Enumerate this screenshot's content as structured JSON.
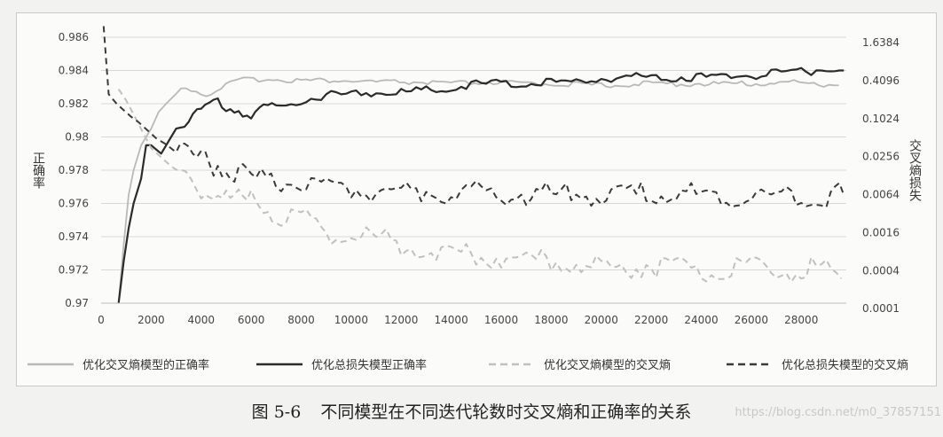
{
  "chart_data": {
    "type": "line",
    "title": "",
    "xlabel": "",
    "ylabel": "正确率",
    "y2label": "交叉熵损失",
    "xlim": [
      0,
      29800
    ],
    "ylim": [
      0.97,
      0.986
    ],
    "y2lim_log2": [
      -13,
      1
    ],
    "y2_scale": "log2",
    "grid": true,
    "legend_position": "bottom",
    "x_ticks": [
      "0",
      "2000",
      "4000",
      "6000",
      "8000",
      "10000",
      "12000",
      "14000",
      "16000",
      "18000",
      "20000",
      "22000",
      "24000",
      "26000",
      "28000"
    ],
    "y_ticks": [
      "0.986",
      "0.984",
      "0.982",
      "0.98",
      "0.978",
      "0.976",
      "0.974",
      "0.972",
      "0.97"
    ],
    "y2_ticks": [
      "1.6384",
      "0.4096",
      "0.1024",
      "0.0256",
      "0.0064",
      "0.0016",
      "0.0004",
      "0.0001"
    ],
    "series": [
      {
        "name": "优化交叉熵模型的正确率",
        "axis": "left",
        "style": "solid",
        "color": "#b9b9b9",
        "x": [
          700,
          900,
          1100,
          1300,
          1600,
          2000,
          2300,
          2600,
          3000,
          3200,
          3400,
          3800,
          4200,
          4800,
          5500,
          6500,
          8000,
          9500,
          11000,
          12500,
          14000,
          15500,
          17000,
          18500,
          20000,
          21500,
          23000,
          24500,
          26000,
          27500,
          28500,
          29500
        ],
        "y": [
          0.97,
          0.9735,
          0.9765,
          0.978,
          0.9795,
          0.9805,
          0.9815,
          0.982,
          0.9826,
          0.9829,
          0.983,
          0.9828,
          0.9825,
          0.983,
          0.9834,
          0.9835,
          0.9834,
          0.9834,
          0.9833,
          0.9833,
          0.9832,
          0.9833,
          0.9832,
          0.9832,
          0.9831,
          0.9832,
          0.9832,
          0.9832,
          0.9832,
          0.9833,
          0.9832,
          0.9831
        ]
      },
      {
        "name": "优化总损失模型正确率",
        "axis": "left",
        "style": "solid",
        "color": "#2b2b2b",
        "x": [
          700,
          900,
          1100,
          1300,
          1600,
          1800,
          2000,
          2400,
          3000,
          3500,
          4000,
          4500,
          5000,
          5500,
          6000,
          6500,
          7000,
          8000,
          9000,
          10000,
          11000,
          12000,
          13000,
          14000,
          15000,
          16000,
          17000,
          18000,
          19000,
          20000,
          21000,
          22000,
          23000,
          24000,
          25000,
          26000,
          27000,
          28000,
          29000,
          29700
        ],
        "y": [
          0.97,
          0.9725,
          0.9745,
          0.976,
          0.9775,
          0.9795,
          0.9795,
          0.979,
          0.9805,
          0.981,
          0.9817,
          0.9822,
          0.9818,
          0.9816,
          0.9812,
          0.9818,
          0.9818,
          0.9822,
          0.9825,
          0.9826,
          0.9827,
          0.9827,
          0.9828,
          0.9829,
          0.9832,
          0.9832,
          0.9832,
          0.9833,
          0.9833,
          0.9835,
          0.9836,
          0.9836,
          0.9836,
          0.9836,
          0.9837,
          0.9837,
          0.9838,
          0.9839,
          0.9841,
          0.984
        ]
      },
      {
        "name": "优化交叉熵模型的交叉熵",
        "axis": "right",
        "style": "dashed",
        "color": "#c0c0c0",
        "x": [
          700,
          1000,
          1300,
          1600,
          2000,
          2400,
          2800,
          3200,
          3600,
          4000,
          4500,
          5000,
          5500,
          6000,
          6500,
          7000,
          8000,
          9000,
          10000,
          11000,
          12000,
          13000,
          14000,
          15000,
          16000,
          17000,
          18000,
          19000,
          20000,
          21000,
          22000,
          23000,
          24000,
          25000,
          26000,
          27000,
          28000,
          29000,
          29600
        ],
        "y": [
          0.3,
          0.2,
          0.12,
          0.07,
          0.035,
          0.025,
          0.018,
          0.014,
          0.011,
          0.009,
          0.007,
          0.0055,
          0.005,
          0.0045,
          0.004,
          0.0033,
          0.0025,
          0.0018,
          0.0016,
          0.0013,
          0.0011,
          0.0009,
          0.0008,
          0.0007,
          0.0007,
          0.0006,
          0.0006,
          0.0005,
          0.0004,
          0.0005,
          0.0005,
          0.0004,
          0.0004,
          0.0004,
          0.0004,
          0.0004,
          0.0004,
          0.0004,
          0.0003
        ]
      },
      {
        "name": "优化总损失模型的交叉熵",
        "axis": "right",
        "style": "dashed",
        "color": "#3a3a3a",
        "x": [
          100,
          300,
          600,
          900,
          1200,
          1500,
          1800,
          2200,
          2600,
          3000,
          3500,
          4000,
          4500,
          5000,
          5500,
          6000,
          7000,
          8000,
          9000,
          10000,
          11000,
          12000,
          13000,
          14000,
          15000,
          16000,
          17000,
          18000,
          19000,
          20000,
          21000,
          22000,
          23000,
          24000,
          25000,
          26000,
          27000,
          28000,
          29000,
          29700
        ],
        "y": [
          3.0,
          0.25,
          0.18,
          0.14,
          0.11,
          0.09,
          0.07,
          0.05,
          0.04,
          0.03,
          0.025,
          0.022,
          0.02,
          0.017,
          0.014,
          0.012,
          0.01,
          0.009,
          0.0085,
          0.008,
          0.0078,
          0.0075,
          0.0072,
          0.007,
          0.0068,
          0.0067,
          0.0066,
          0.0065,
          0.0065,
          0.0064,
          0.0064,
          0.0064,
          0.0063,
          0.0063,
          0.0063,
          0.0063,
          0.0063,
          0.0063,
          0.0063,
          0.0063
        ]
      }
    ]
  },
  "caption": {
    "figure_number": "图 5-6",
    "text": "不同模型在不同迭代轮数时交叉熵和正确率的关系"
  },
  "watermark": "https://blog.csdn.net/m0_37857151"
}
